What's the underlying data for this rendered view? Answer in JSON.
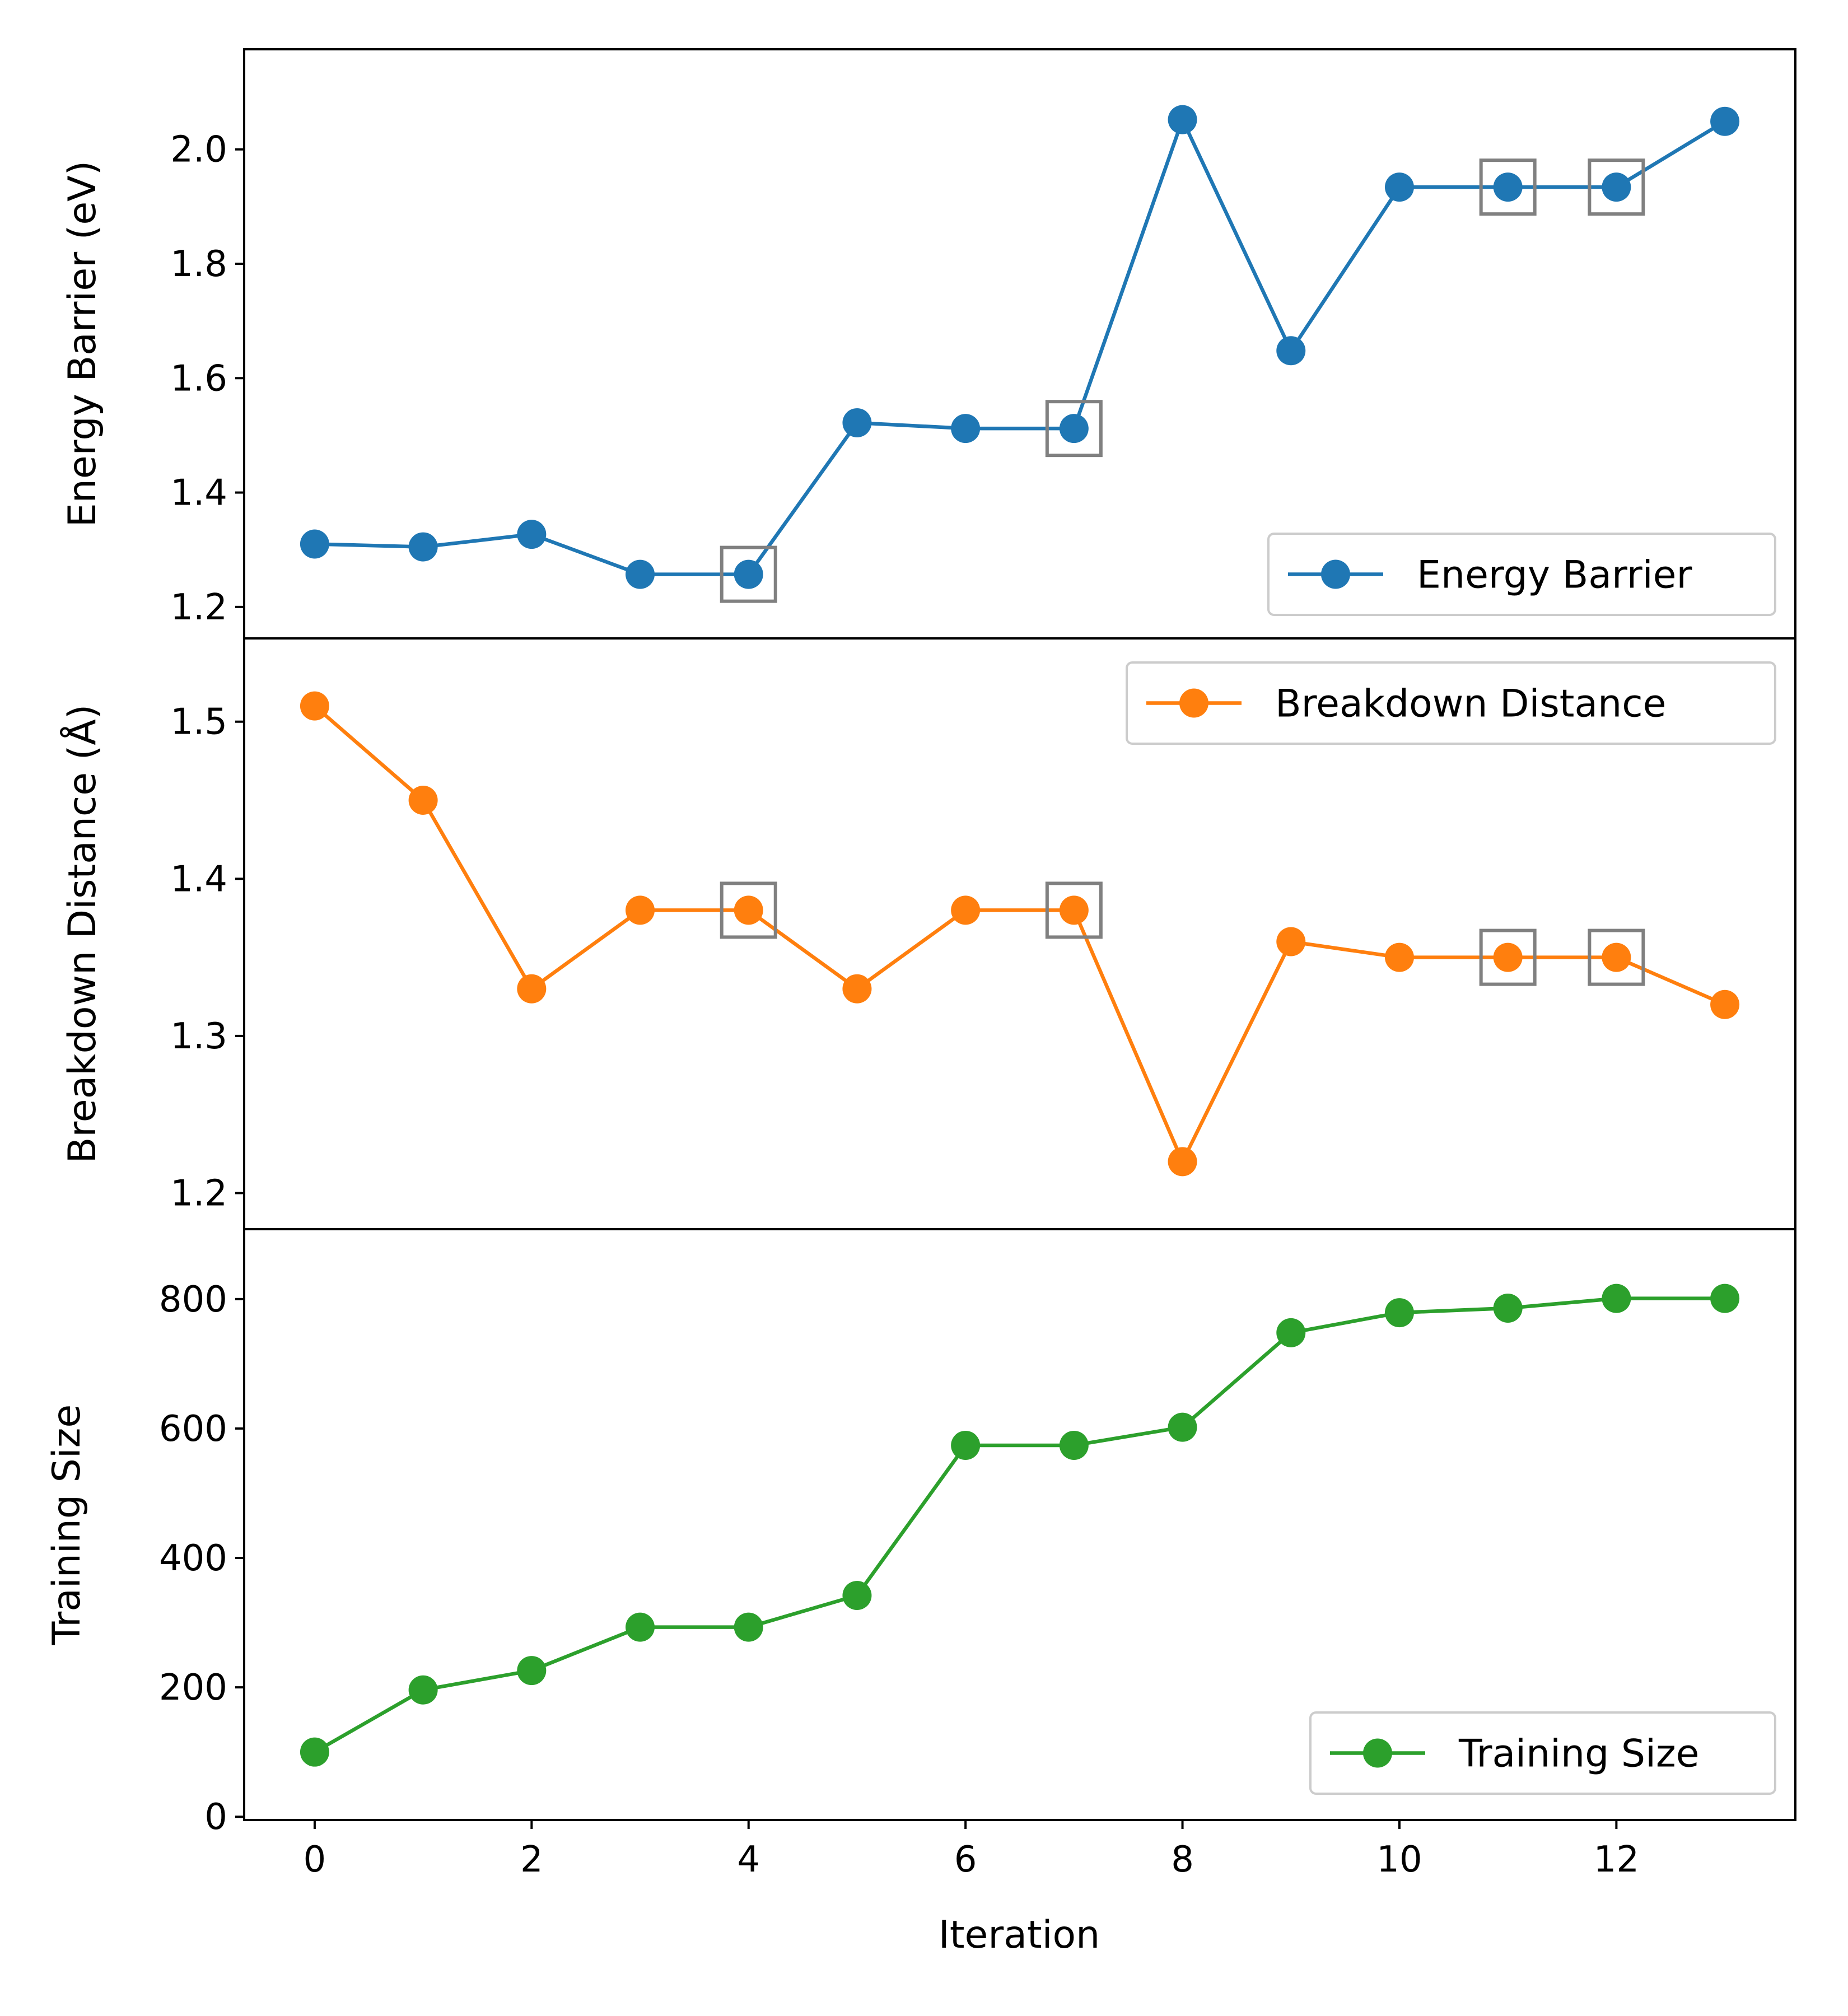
{
  "figure": {
    "xlabel": "Iteration",
    "x_ticks": [
      0,
      2,
      4,
      6,
      8,
      10,
      12
    ],
    "xlim": [
      -0.65,
      13.65
    ]
  },
  "chart_data": [
    {
      "type": "line",
      "ylabel": "Energy Barrier (eV)",
      "ylim": [
        1.145,
        2.175
      ],
      "y_ticks": [
        "1.2",
        "1.4",
        "1.6",
        "1.8",
        "2.0"
      ],
      "legend_position": "bottom-right",
      "color": "#1f77b4",
      "series": [
        {
          "name": "Energy Barrier",
          "x": [
            0,
            1,
            2,
            3,
            4,
            5,
            6,
            7,
            8,
            9,
            10,
            11,
            12,
            13
          ],
          "values": [
            1.31,
            1.305,
            1.327,
            1.257,
            1.257,
            1.522,
            1.512,
            1.512,
            2.052,
            1.648,
            1.934,
            1.934,
            1.934,
            2.049
          ]
        }
      ],
      "highlighted_x": [
        4,
        7,
        11,
        12
      ]
    },
    {
      "type": "line",
      "ylabel": "Breakdown Distance (Å)",
      "ylim": [
        1.177,
        1.553
      ],
      "y_ticks": [
        "1.2",
        "1.3",
        "1.4",
        "1.5"
      ],
      "legend_position": "top-right",
      "color": "#ff7f0e",
      "series": [
        {
          "name": "Breakdown Distance",
          "x": [
            0,
            1,
            2,
            3,
            4,
            5,
            6,
            7,
            8,
            9,
            10,
            11,
            12,
            13
          ],
          "values": [
            1.51,
            1.45,
            1.33,
            1.38,
            1.38,
            1.33,
            1.38,
            1.38,
            1.22,
            1.36,
            1.35,
            1.35,
            1.35,
            1.32
          ]
        }
      ],
      "highlighted_x": [
        4,
        7,
        11,
        12
      ]
    },
    {
      "type": "line",
      "ylabel": "Training Size",
      "ylim": [
        -5,
        908
      ],
      "y_ticks": [
        "0",
        "200",
        "400",
        "600",
        "800"
      ],
      "legend_position": "bottom-right",
      "color": "#2ca02c",
      "series": [
        {
          "name": "Training Size",
          "x": [
            0,
            1,
            2,
            3,
            4,
            5,
            6,
            7,
            8,
            9,
            10,
            11,
            12,
            13
          ],
          "values": [
            100,
            196,
            226,
            293,
            293,
            342,
            574,
            574,
            602,
            748,
            779,
            786,
            801,
            801
          ]
        }
      ],
      "highlighted_x": []
    }
  ]
}
